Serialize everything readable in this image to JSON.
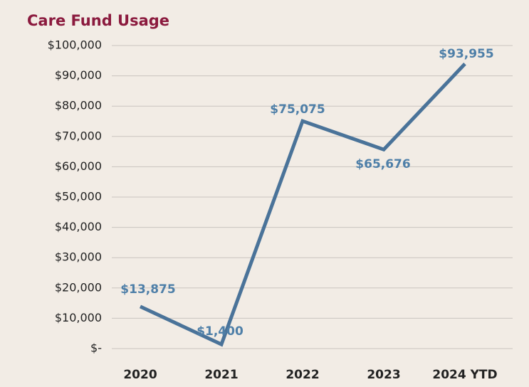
{
  "chart_data": {
    "type": "line",
    "title": "Care Fund Usage",
    "categories": [
      "2020",
      "2021",
      "2022",
      "2023",
      "2024 YTD"
    ],
    "series": [
      {
        "color": "#4a7399",
        "values": [
          13875,
          1400,
          75075,
          65676,
          93955
        ],
        "value_labels": [
          "$13,875",
          "$1,400",
          "$75,075",
          "$65,676",
          "$93,955"
        ]
      }
    ],
    "ylim": [
      0,
      100000
    ],
    "yticks": [
      {
        "value": 0,
        "label": "$-"
      },
      {
        "value": 10000,
        "label": "$10,000"
      },
      {
        "value": 20000,
        "label": "$20,000"
      },
      {
        "value": 30000,
        "label": "$30,000"
      },
      {
        "value": 40000,
        "label": "$40,000"
      },
      {
        "value": 50000,
        "label": "$50,000"
      },
      {
        "value": 60000,
        "label": "$60,000"
      },
      {
        "value": 70000,
        "label": "$70,000"
      },
      {
        "value": 80000,
        "label": "$80,000"
      },
      {
        "value": 90000,
        "label": "$90,000"
      },
      {
        "value": 100000,
        "label": "$100,000"
      }
    ],
    "grid": true
  }
}
